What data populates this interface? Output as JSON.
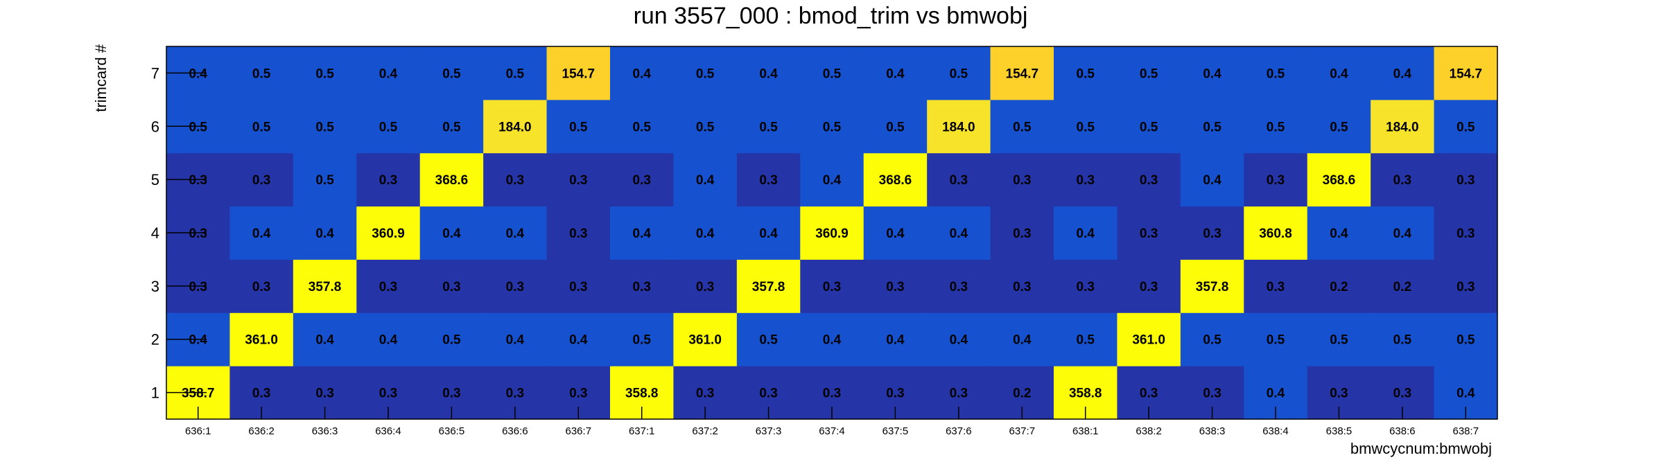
{
  "chart_data": {
    "type": "heatmap",
    "title": "run 3557_000 : bmod_trim vs bmwobj",
    "xlabel": "bmwcycnum:bmwobj",
    "ylabel": "trimcard #",
    "x_categories": [
      "636:1",
      "636:2",
      "636:3",
      "636:4",
      "636:5",
      "636:6",
      "636:7",
      "637:1",
      "637:2",
      "637:3",
      "637:4",
      "637:5",
      "637:6",
      "637:7",
      "638:1",
      "638:2",
      "638:3",
      "638:4",
      "638:5",
      "638:6",
      "638:7"
    ],
    "y_categories": [
      "1",
      "2",
      "3",
      "4",
      "5",
      "6",
      "7"
    ],
    "values": [
      [
        "358.7",
        "0.3",
        "0.3",
        "0.3",
        "0.3",
        "0.3",
        "0.3",
        "358.8",
        "0.3",
        "0.3",
        "0.3",
        "0.3",
        "0.3",
        "0.2",
        "358.8",
        "0.3",
        "0.3",
        "0.4",
        "0.3",
        "0.3",
        "0.4"
      ],
      [
        "0.4",
        "361.0",
        "0.4",
        "0.4",
        "0.5",
        "0.4",
        "0.4",
        "0.5",
        "361.0",
        "0.5",
        "0.4",
        "0.4",
        "0.4",
        "0.4",
        "0.5",
        "361.0",
        "0.5",
        "0.5",
        "0.5",
        "0.5",
        "0.5"
      ],
      [
        "0.3",
        "0.3",
        "357.8",
        "0.3",
        "0.3",
        "0.3",
        "0.3",
        "0.3",
        "0.3",
        "357.8",
        "0.3",
        "0.3",
        "0.3",
        "0.3",
        "0.3",
        "0.3",
        "357.8",
        "0.3",
        "0.2",
        "0.2",
        "0.3"
      ],
      [
        "0.3",
        "0.4",
        "0.4",
        "360.9",
        "0.4",
        "0.4",
        "0.3",
        "0.4",
        "0.4",
        "0.4",
        "360.9",
        "0.4",
        "0.4",
        "0.3",
        "0.4",
        "0.3",
        "0.3",
        "360.8",
        "0.4",
        "0.4",
        "0.3"
      ],
      [
        "0.3",
        "0.3",
        "0.5",
        "0.3",
        "368.6",
        "0.3",
        "0.3",
        "0.3",
        "0.4",
        "0.3",
        "0.4",
        "368.6",
        "0.3",
        "0.3",
        "0.3",
        "0.3",
        "0.4",
        "0.3",
        "368.6",
        "0.3",
        "0.3"
      ],
      [
        "0.5",
        "0.5",
        "0.5",
        "0.5",
        "0.5",
        "184.0",
        "0.5",
        "0.5",
        "0.5",
        "0.5",
        "0.5",
        "0.5",
        "184.0",
        "0.5",
        "0.5",
        "0.5",
        "0.5",
        "0.5",
        "0.5",
        "184.0",
        "0.5"
      ],
      [
        "0.4",
        "0.5",
        "0.5",
        "0.4",
        "0.5",
        "0.5",
        "154.7",
        "0.4",
        "0.5",
        "0.4",
        "0.5",
        "0.4",
        "0.5",
        "154.7",
        "0.5",
        "0.5",
        "0.4",
        "0.5",
        "0.4",
        "0.4",
        "154.7"
      ]
    ],
    "color_bins": [
      {
        "max": 0.35,
        "color": "#2535a8"
      },
      {
        "max": 100,
        "color": "#1652cf"
      },
      {
        "max": 170,
        "color": "#fdd12a"
      },
      {
        "max": 250,
        "color": "#f6e32a"
      },
      {
        "max": 1000,
        "color": "#fdfd08"
      }
    ],
    "colors": {
      "frame": "#000000",
      "text": "#000000",
      "background": "#ffffff"
    },
    "legend": "none",
    "grid": false
  }
}
